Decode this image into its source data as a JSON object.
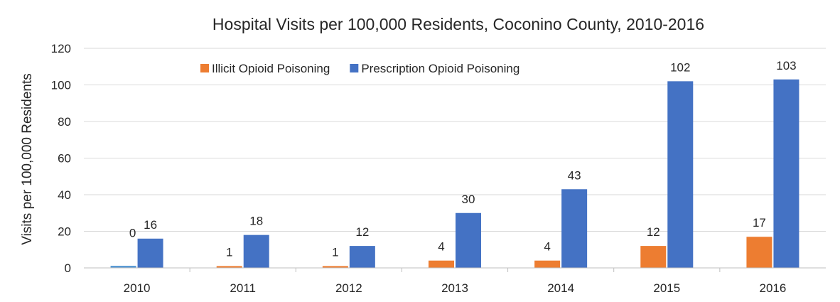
{
  "chart_data": {
    "type": "bar",
    "title": "Hospital Visits per 100,000 Residents, Coconino County, 2010-2016",
    "xlabel": "",
    "ylabel": "Visits per 100,000 Residents",
    "categories": [
      "2010",
      "2011",
      "2012",
      "2013",
      "2014",
      "2015",
      "2016"
    ],
    "series": [
      {
        "name": "Illicit Opioid Poisoning",
        "color": "#ED7D31",
        "values": [
          0,
          1,
          1,
          4,
          4,
          12,
          17
        ],
        "labels": [
          "",
          "1",
          "1",
          "4",
          "4",
          "12",
          "17"
        ]
      },
      {
        "name": "Prescription Opioid Poisoning",
        "color": "#4472C4",
        "values": [
          16,
          18,
          12,
          30,
          43,
          102,
          103
        ],
        "labels": [
          "16",
          "18",
          "12",
          "30",
          "43",
          "102",
          "103"
        ]
      }
    ],
    "extra_labels": [
      {
        "category": "2010",
        "text": "0"
      }
    ],
    "ylim": [
      0,
      120
    ],
    "yticks": [
      "0",
      "20",
      "40",
      "60",
      "80",
      "100",
      "120"
    ],
    "grid": true,
    "legend_position": "top"
  }
}
